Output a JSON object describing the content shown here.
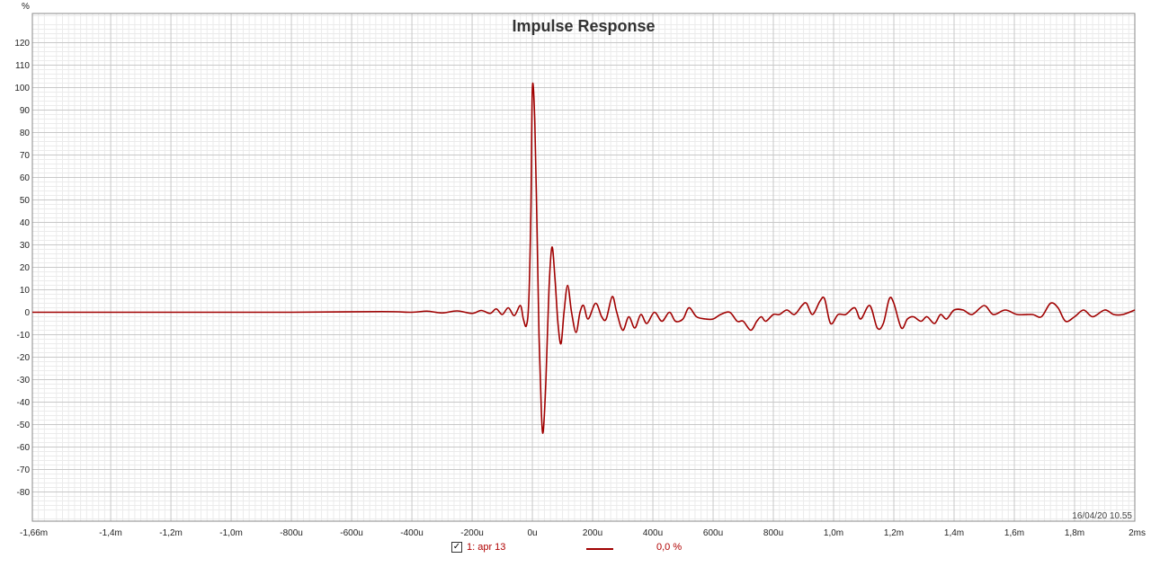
{
  "chart_data": {
    "type": "line",
    "title": "Impulse Response",
    "ylabel": "%",
    "xlabel": "",
    "xlim": [
      -1.66,
      2.0
    ],
    "ylim": [
      -93,
      133
    ],
    "x_unit": "ms",
    "grid": true,
    "x_tick_labels": [
      {
        "x": -1.66,
        "label": "-1,66m"
      },
      {
        "x": -1.4,
        "label": "-1,4m"
      },
      {
        "x": -1.2,
        "label": "-1,2m"
      },
      {
        "x": -1.0,
        "label": "-1,0m"
      },
      {
        "x": -0.8,
        "label": "-800u"
      },
      {
        "x": -0.6,
        "label": "-600u"
      },
      {
        "x": -0.4,
        "label": "-400u"
      },
      {
        "x": -0.2,
        "label": "-200u"
      },
      {
        "x": 0.0,
        "label": "0u"
      },
      {
        "x": 0.2,
        "label": "200u"
      },
      {
        "x": 0.4,
        "label": "400u"
      },
      {
        "x": 0.6,
        "label": "600u"
      },
      {
        "x": 0.8,
        "label": "800u"
      },
      {
        "x": 1.0,
        "label": "1,0m"
      },
      {
        "x": 1.2,
        "label": "1,2m"
      },
      {
        "x": 1.4,
        "label": "1,4m"
      },
      {
        "x": 1.6,
        "label": "1,6m"
      },
      {
        "x": 1.8,
        "label": "1,8m"
      },
      {
        "x": 2.0,
        "label": "2ms"
      }
    ],
    "y_ticks": [
      120,
      110,
      100,
      90,
      80,
      70,
      60,
      50,
      40,
      30,
      20,
      10,
      0,
      -10,
      -20,
      -30,
      -40,
      -50,
      -60,
      -70,
      -80
    ],
    "series": [
      {
        "name": "1: apr 13",
        "color": "#a00000",
        "points": [
          [
            -1.66,
            0
          ],
          [
            -1.2,
            0
          ],
          [
            -0.8,
            0
          ],
          [
            -0.5,
            0.3
          ],
          [
            -0.4,
            0
          ],
          [
            -0.35,
            0.5
          ],
          [
            -0.3,
            -0.3
          ],
          [
            -0.25,
            0.6
          ],
          [
            -0.2,
            -0.5
          ],
          [
            -0.17,
            0.8
          ],
          [
            -0.14,
            -0.5
          ],
          [
            -0.12,
            1.5
          ],
          [
            -0.1,
            -1
          ],
          [
            -0.08,
            2
          ],
          [
            -0.06,
            -1.5
          ],
          [
            -0.04,
            3
          ],
          [
            -0.03,
            -3
          ],
          [
            -0.02,
            -6
          ],
          [
            -0.012,
            5
          ],
          [
            -0.005,
            45
          ],
          [
            0.0,
            100
          ],
          [
            0.008,
            85
          ],
          [
            0.015,
            40
          ],
          [
            0.022,
            -10
          ],
          [
            0.03,
            -45
          ],
          [
            0.036,
            -53
          ],
          [
            0.045,
            -30
          ],
          [
            0.055,
            10
          ],
          [
            0.065,
            29
          ],
          [
            0.075,
            15
          ],
          [
            0.085,
            -5
          ],
          [
            0.095,
            -14
          ],
          [
            0.105,
            0
          ],
          [
            0.117,
            12
          ],
          [
            0.13,
            0
          ],
          [
            0.145,
            -9
          ],
          [
            0.158,
            0
          ],
          [
            0.17,
            3
          ],
          [
            0.185,
            -3
          ],
          [
            0.21,
            4
          ],
          [
            0.23,
            -2
          ],
          [
            0.245,
            -3
          ],
          [
            0.265,
            7
          ],
          [
            0.28,
            0
          ],
          [
            0.3,
            -8
          ],
          [
            0.32,
            -2
          ],
          [
            0.34,
            -7
          ],
          [
            0.36,
            -1
          ],
          [
            0.38,
            -5
          ],
          [
            0.405,
            0
          ],
          [
            0.43,
            -4
          ],
          [
            0.455,
            0
          ],
          [
            0.475,
            -4
          ],
          [
            0.5,
            -3
          ],
          [
            0.52,
            2
          ],
          [
            0.545,
            -2
          ],
          [
            0.575,
            -3
          ],
          [
            0.6,
            -3
          ],
          [
            0.625,
            -1
          ],
          [
            0.655,
            0
          ],
          [
            0.68,
            -4
          ],
          [
            0.7,
            -4
          ],
          [
            0.725,
            -8
          ],
          [
            0.745,
            -4
          ],
          [
            0.76,
            -2
          ],
          [
            0.775,
            -4
          ],
          [
            0.8,
            -1
          ],
          [
            0.82,
            -1
          ],
          [
            0.845,
            1
          ],
          [
            0.87,
            -1
          ],
          [
            0.895,
            3
          ],
          [
            0.91,
            4
          ],
          [
            0.93,
            -1
          ],
          [
            0.955,
            5
          ],
          [
            0.97,
            6
          ],
          [
            0.99,
            -5
          ],
          [
            1.015,
            -1
          ],
          [
            1.04,
            -1
          ],
          [
            1.07,
            2
          ],
          [
            1.09,
            -3
          ],
          [
            1.12,
            3
          ],
          [
            1.145,
            -7
          ],
          [
            1.165,
            -5
          ],
          [
            1.185,
            6
          ],
          [
            1.2,
            4
          ],
          [
            1.225,
            -7
          ],
          [
            1.245,
            -3
          ],
          [
            1.265,
            -2
          ],
          [
            1.29,
            -4
          ],
          [
            1.31,
            -2
          ],
          [
            1.335,
            -5
          ],
          [
            1.355,
            -1
          ],
          [
            1.375,
            -3
          ],
          [
            1.4,
            1
          ],
          [
            1.43,
            1
          ],
          [
            1.46,
            -1
          ],
          [
            1.5,
            3
          ],
          [
            1.53,
            -1
          ],
          [
            1.57,
            1
          ],
          [
            1.61,
            -1
          ],
          [
            1.66,
            -1
          ],
          [
            1.69,
            -2
          ],
          [
            1.72,
            4
          ],
          [
            1.745,
            2
          ],
          [
            1.77,
            -4
          ],
          [
            1.8,
            -2
          ],
          [
            1.83,
            1
          ],
          [
            1.86,
            -2
          ],
          [
            1.9,
            1
          ],
          [
            1.93,
            -1
          ],
          [
            1.96,
            -1
          ],
          [
            2.0,
            1
          ]
        ]
      }
    ]
  },
  "annotation": {
    "timestamp": "16/04/20 10.55"
  },
  "legend": {
    "checked_mark": "✓",
    "entry_name": "1: apr 13",
    "entry_value": "0,0 %"
  }
}
